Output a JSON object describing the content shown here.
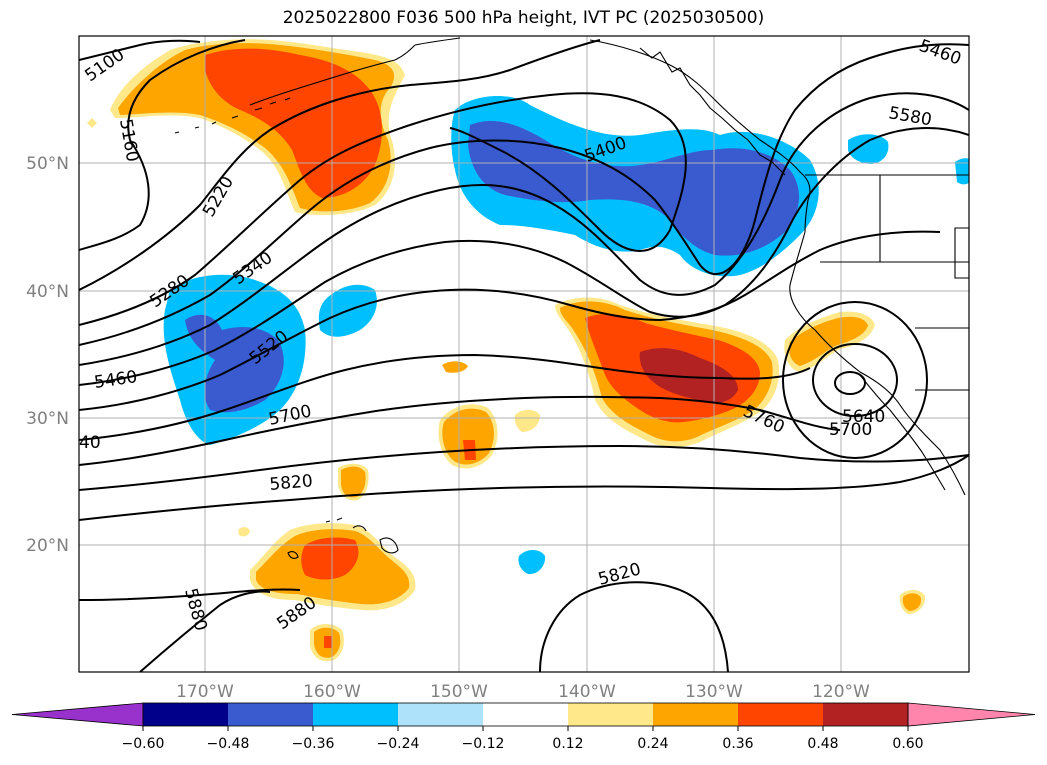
{
  "title": "2025022800 F036 500 hPa height, IVT PC (2025030500)",
  "lon_labels": [
    "170°W",
    "160°W",
    "150°W",
    "140°W",
    "130°W",
    "120°W"
  ],
  "lat_labels": [
    "50°N",
    "40°N",
    "30°N",
    "20°N"
  ],
  "colorbar": {
    "tick_labels": [
      "−0.60",
      "−0.48",
      "−0.36",
      "−0.24",
      "−0.12",
      "0.12",
      "0.24",
      "0.36",
      "0.48",
      "0.60"
    ],
    "colors": [
      "#9932CC",
      "#00008B",
      "#3A5BD0",
      "#00BFFF",
      "#ADE2FA",
      "#FFFFFF",
      "#FFE88A",
      "#FFA500",
      "#FF4500",
      "#B22222",
      "#FF85AD"
    ]
  },
  "contour_labels": {
    "c5100": "5100",
    "c5160": "5160",
    "c5220": "5220",
    "c5280": "5280",
    "c5340": "5340",
    "c5400": "5400",
    "c5460a": "5460",
    "c5460b": "5460",
    "c5520": "5520",
    "c5580": "5580",
    "c5640a": "5640",
    "c5640b": "40",
    "c5700a": "5700",
    "c5700b": "5700",
    "c5760": "5760",
    "c5820a": "5820",
    "c5820b": "5820",
    "c5880a": "5880",
    "c5880b": "5880"
  }
}
